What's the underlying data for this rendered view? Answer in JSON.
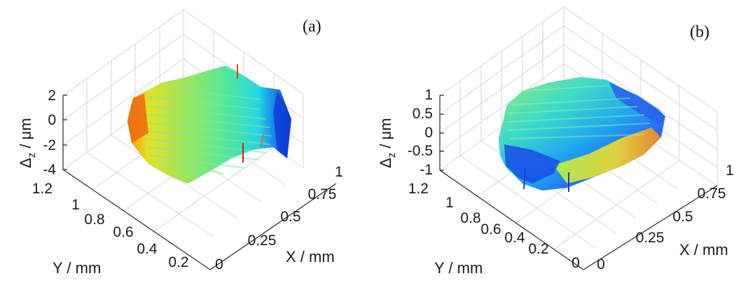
{
  "chart_data": [
    {
      "type": "surface",
      "panel_label": "(a)",
      "xlabel": "X / mm",
      "ylabel": "Y / mm",
      "zlabel_main": "Δ",
      "zlabel_sub": "z",
      "zlabel_unit": " / μm",
      "xlim": [
        0,
        1
      ],
      "ylim": [
        0.2,
        1.2
      ],
      "zlim": [
        -4,
        2
      ],
      "xticks": [
        0,
        0.25,
        0.5,
        0.75,
        1
      ],
      "xtick_labels": [
        "0",
        "0.25",
        "0.5",
        "0.75",
        "1"
      ],
      "yticks": [
        0.2,
        0.4,
        0.6,
        0.8,
        1,
        1.2
      ],
      "ytick_labels": [
        "0.2",
        "0.4",
        "0.6",
        "0.8",
        "1",
        "1.2"
      ],
      "zticks": [
        -4,
        -2,
        0,
        2
      ],
      "ztick_labels": [
        "-4",
        "-2",
        "0",
        "2"
      ],
      "grid": true,
      "colormap": "jet"
    },
    {
      "type": "surface",
      "panel_label": "(b)",
      "xlabel": "X / mm",
      "ylabel": "Y / mm",
      "zlabel_main": "Δ",
      "zlabel_sub": "z",
      "zlabel_unit": " / μm",
      "xlim": [
        0,
        1
      ],
      "ylim": [
        0,
        1.2
      ],
      "zlim": [
        -1,
        1
      ],
      "xticks": [
        0,
        0.25,
        0.5,
        0.75,
        1
      ],
      "xtick_labels": [
        "0",
        "0.25",
        "0.5",
        "0.75",
        "1"
      ],
      "yticks": [
        0,
        0.2,
        0.4,
        0.6,
        0.8,
        1,
        1.2
      ],
      "ytick_labels": [
        "0",
        "0.2",
        "0.4",
        "0.6",
        "0.8",
        "1",
        "1.2"
      ],
      "zticks": [
        -1,
        -0.5,
        0,
        0.5,
        1
      ],
      "ztick_labels": [
        "-1",
        "-0.5",
        "0",
        "0.5",
        "1"
      ],
      "grid": true,
      "colormap": "jet"
    }
  ]
}
